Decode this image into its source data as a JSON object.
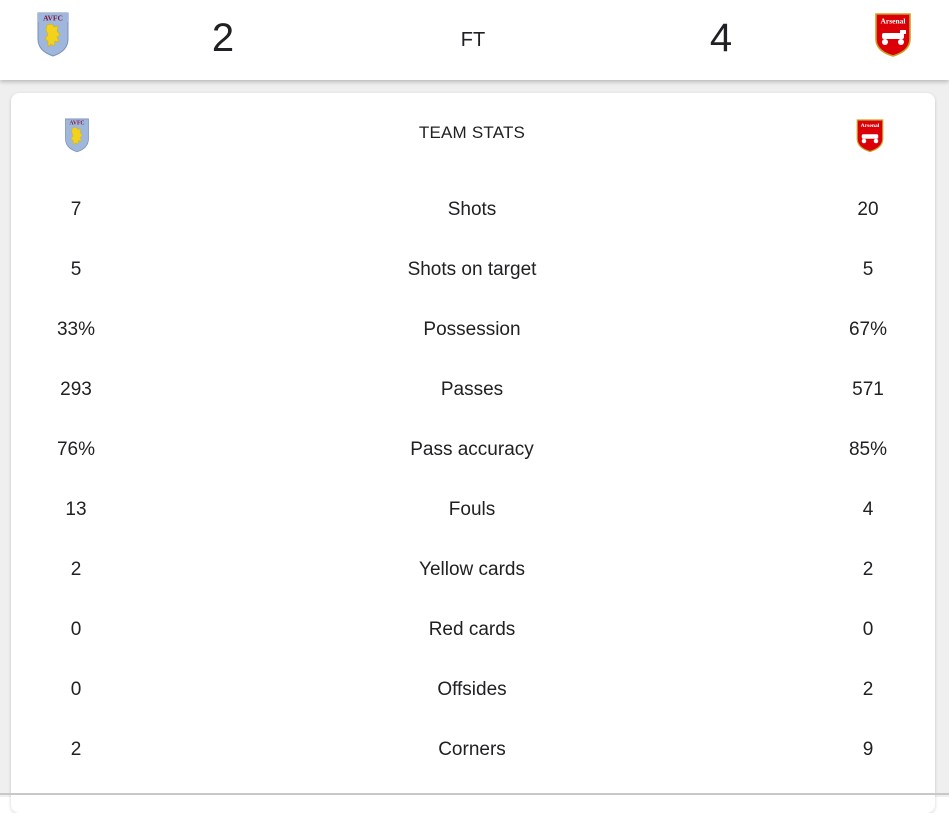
{
  "match": {
    "home": {
      "name": "Aston Villa",
      "crest_text": "AVFC",
      "crest_icon": "aston-villa-crest-icon",
      "score": "2"
    },
    "away": {
      "name": "Arsenal",
      "crest_text": "Arsenal",
      "crest_icon": "arsenal-crest-icon",
      "score": "4"
    },
    "status": "FT"
  },
  "team_stats": {
    "title": "TEAM STATS",
    "rows": [
      {
        "label": "Shots",
        "home": "7",
        "away": "20"
      },
      {
        "label": "Shots on target",
        "home": "5",
        "away": "5"
      },
      {
        "label": "Possession",
        "home": "33%",
        "away": "67%"
      },
      {
        "label": "Passes",
        "home": "293",
        "away": "571"
      },
      {
        "label": "Pass accuracy",
        "home": "76%",
        "away": "85%"
      },
      {
        "label": "Fouls",
        "home": "13",
        "away": "4"
      },
      {
        "label": "Yellow cards",
        "home": "2",
        "away": "2"
      },
      {
        "label": "Red cards",
        "home": "0",
        "away": "0"
      },
      {
        "label": "Offsides",
        "home": "0",
        "away": "2"
      },
      {
        "label": "Corners",
        "home": "2",
        "away": "9"
      }
    ]
  },
  "colors": {
    "villa_sky": "#9fb6dd",
    "villa_claret": "#7b1c3e",
    "villa_lion": "#f2d21c",
    "arsenal_red": "#db0007",
    "arsenal_gold": "#c9a227"
  }
}
